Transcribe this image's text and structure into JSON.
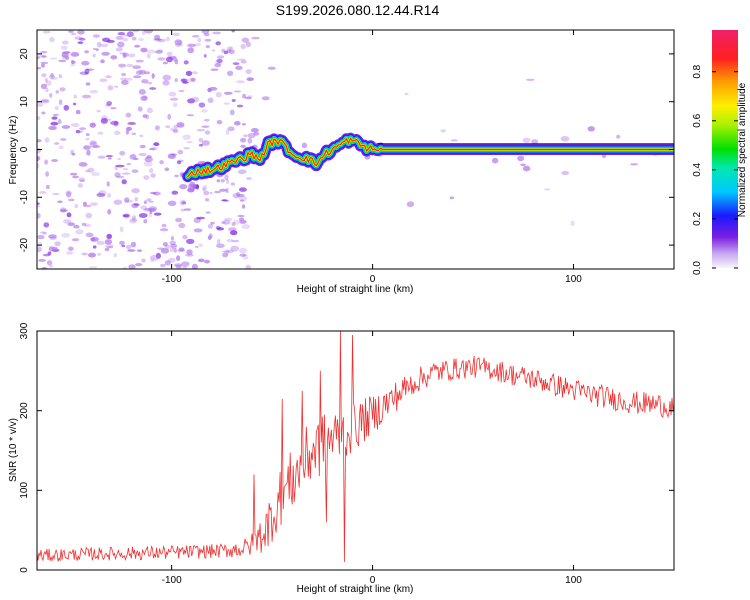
{
  "title": "S199.2026.080.12.44.R14",
  "colors": {
    "snr_line": "#f03030",
    "trace": "#ff1a1a",
    "noise": "#b07ae8",
    "noise_dark": "#7a1fe0",
    "frame": "#000000"
  },
  "chart_data": [
    {
      "type": "heatmap",
      "title": "",
      "xlabel": "Height of straight line (km)",
      "ylabel": "Frequency (Hz)",
      "xlim": [
        -167,
        150
      ],
      "ylim": [
        -25,
        25
      ],
      "x_ticks": [
        -100,
        0,
        100
      ],
      "x_tick_labels": [
        "-100",
        "0",
        "100"
      ],
      "y_ticks": [
        -20,
        -10,
        0,
        10,
        20
      ],
      "y_tick_labels": [
        "-20",
        "-10",
        "0",
        "10",
        "20"
      ],
      "colorbar": {
        "label": "Normalized spectral amplitude",
        "range": [
          0,
          0.97
        ],
        "ticks": [
          0.0,
          0.2,
          0.4,
          0.6,
          0.8
        ],
        "tick_labels": [
          "0.0",
          "0.2",
          "0.4",
          "0.6",
          "0.8"
        ]
      },
      "frequency_trace": {
        "x": [
          -92,
          -85,
          -78,
          -72,
          -66,
          -60,
          -56,
          -52,
          -48,
          -44,
          -40,
          -36,
          -32,
          -28,
          -24,
          -20,
          -16,
          -12,
          -8,
          -4,
          0,
          4,
          10,
          20,
          40,
          60,
          80,
          100,
          120,
          128,
          140,
          150
        ],
        "y": [
          -5,
          -4.5,
          -4,
          -3,
          -2,
          -1,
          -2,
          1,
          2,
          1,
          -1,
          -1.5,
          -2,
          -3,
          -1,
          0,
          1,
          2,
          1.5,
          0.5,
          0,
          0,
          0,
          0,
          0,
          0,
          0,
          0,
          0,
          0,
          0,
          0
        ]
      }
    },
    {
      "type": "line",
      "title": "",
      "xlabel": "Height of straight line (km)",
      "ylabel": "SNR (10 * v/v)",
      "xlim": [
        -167,
        150
      ],
      "ylim": [
        0,
        300
      ],
      "x_ticks": [
        -100,
        0,
        100
      ],
      "x_tick_labels": [
        "-100",
        "0",
        "100"
      ],
      "y_ticks": [
        0,
        100,
        200,
        300
      ],
      "y_tick_labels": [
        "0",
        "100",
        "200",
        "300"
      ],
      "series": [
        {
          "name": "SNR",
          "trend": {
            "x": [
              -167,
              -140,
              -100,
              -75,
              -62,
              -55,
              -45,
              -38,
              -30,
              -20,
              -10,
              0,
              10,
              20,
              30,
              40,
              50,
              60,
              70,
              80,
              90,
              100,
              110,
              120,
              130,
              140,
              150
            ],
            "y": [
              18,
              20,
              22,
              24,
              28,
              45,
              95,
              120,
              150,
              165,
              178,
              195,
              215,
              235,
              248,
              252,
              255,
              252,
              245,
              240,
              233,
              226,
              220,
              215,
              210,
              208,
              205
            ]
          },
          "noise_amplitude": {
            "x": [
              -167,
              -75,
              -60,
              -50,
              -40,
              -30,
              -15,
              0,
              20,
              40,
              80,
              150
            ],
            "y": [
              8,
              9,
              14,
              35,
              40,
              42,
              35,
              25,
              16,
              14,
              14,
              15
            ]
          },
          "spikes": [
            {
              "x": -59,
              "y": 120
            },
            {
              "x": -52,
              "y": 30
            },
            {
              "x": -45,
              "y": 215
            },
            {
              "x": -35,
              "y": 225
            },
            {
              "x": -26,
              "y": 250
            },
            {
              "x": -23,
              "y": 60
            },
            {
              "x": -16,
              "y": 300
            },
            {
              "x": -14,
              "y": 10
            },
            {
              "x": -10,
              "y": 295
            }
          ]
        }
      ]
    }
  ]
}
